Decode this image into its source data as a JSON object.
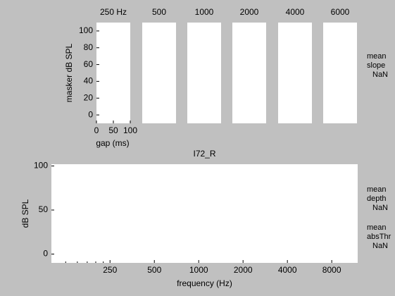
{
  "chart_data": [
    {
      "type": "empty",
      "title": "250 Hz",
      "ylabel": "masker dB SPL",
      "xlabel": "gap (ms)",
      "xlim": [
        0,
        100
      ],
      "ylim": [
        -10,
        110
      ],
      "xticks": [
        0,
        50,
        100
      ],
      "yticks": [
        0,
        20,
        40,
        60,
        80,
        100
      ]
    },
    {
      "type": "empty",
      "title": "500",
      "xlim": [
        0,
        100
      ],
      "ylim": [
        -10,
        110
      ]
    },
    {
      "type": "empty",
      "title": "1000",
      "xlim": [
        0,
        100
      ],
      "ylim": [
        -10,
        110
      ]
    },
    {
      "type": "empty",
      "title": "2000",
      "xlim": [
        0,
        100
      ],
      "ylim": [
        -10,
        110
      ]
    },
    {
      "type": "empty",
      "title": "4000",
      "xlim": [
        0,
        100
      ],
      "ylim": [
        -10,
        110
      ]
    },
    {
      "type": "empty",
      "title": "6000",
      "xlim": [
        0,
        100
      ],
      "ylim": [
        -10,
        110
      ]
    },
    {
      "type": "empty",
      "title": "I72_R",
      "ylabel": "dB SPL",
      "xlabel": "frequency (Hz)",
      "xscale": "log",
      "xlim": [
        100,
        12000
      ],
      "ylim": [
        -10,
        102
      ],
      "xticks": [
        250,
        500,
        1000,
        2000,
        4000,
        8000
      ],
      "xminorticks": [
        125,
        150,
        175,
        200,
        225
      ],
      "yticks": [
        0,
        50,
        100
      ]
    }
  ],
  "annotations": [
    {
      "lines": [
        "mean",
        "slope",
        "NaN"
      ]
    },
    {
      "lines": [
        "mean",
        "depth",
        "NaN"
      ]
    },
    {
      "lines": [
        "mean",
        "absThr",
        "NaN"
      ]
    }
  ]
}
